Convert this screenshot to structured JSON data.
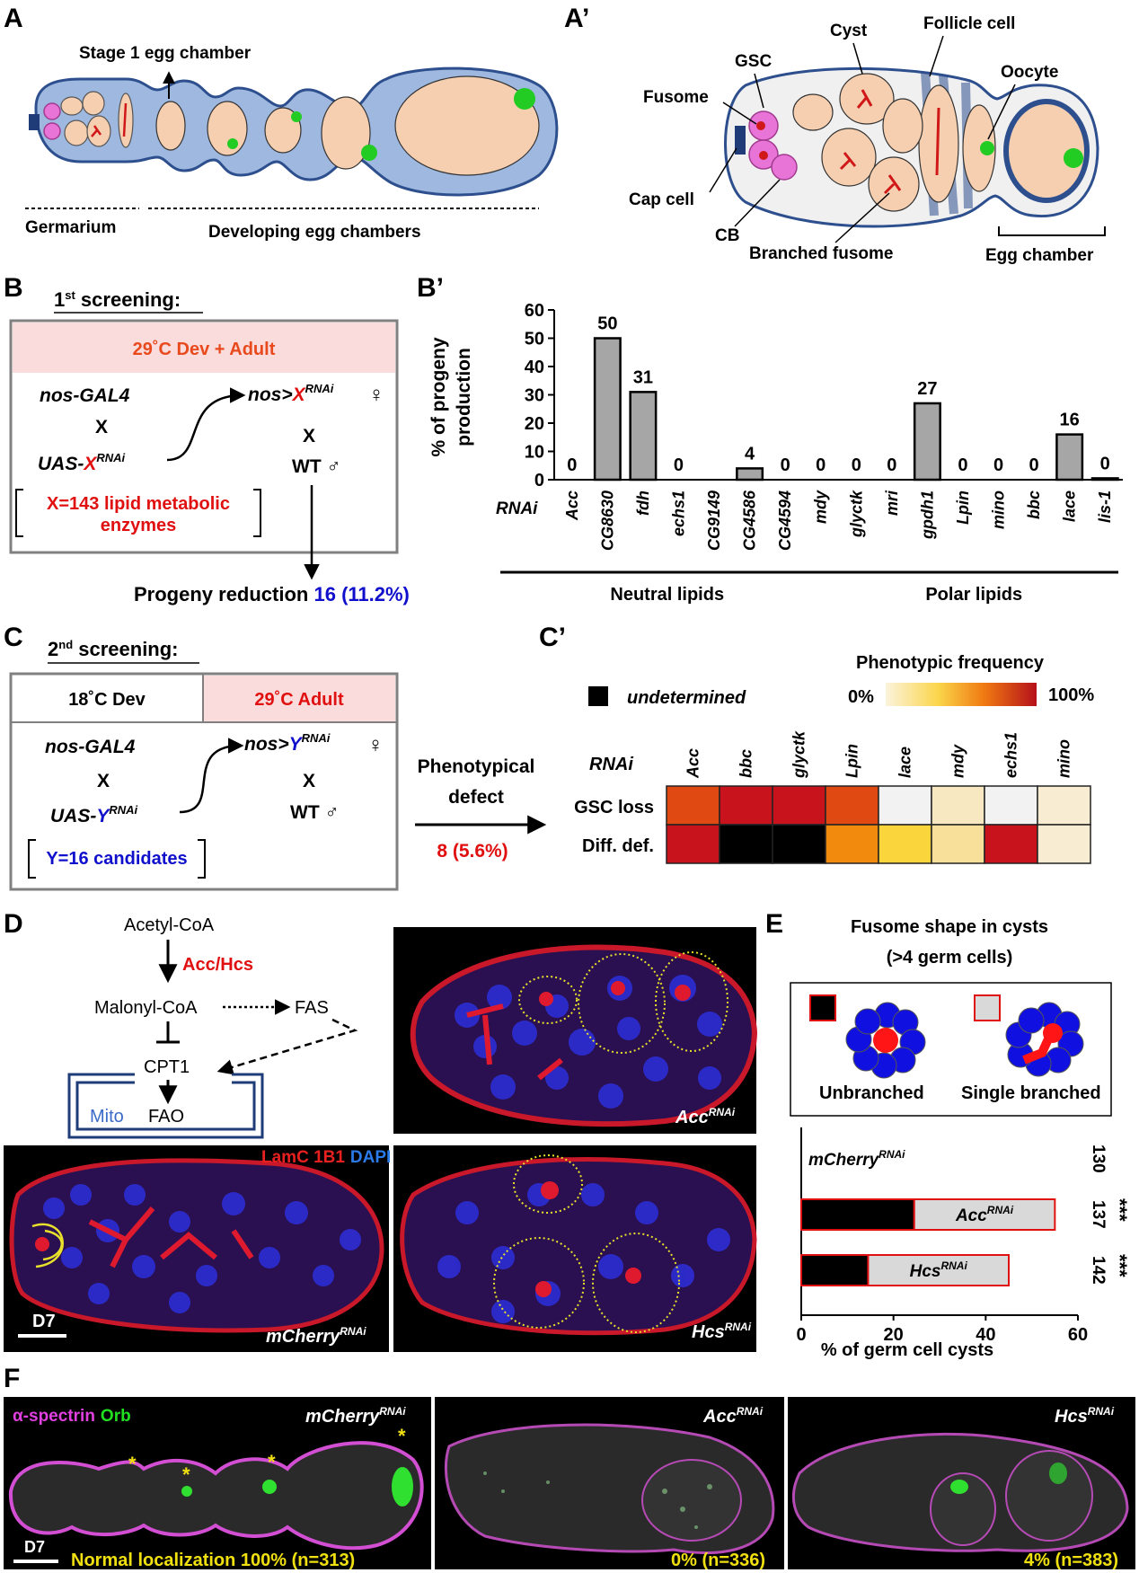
{
  "panels": {
    "A": "A",
    "Ap": "A’",
    "B": "B",
    "Bp": "B’",
    "C": "C",
    "Cp": "C’",
    "D": "D",
    "E": "E",
    "F": "F"
  },
  "panelA": {
    "stage1": "Stage 1 egg chamber",
    "germarium": "Germarium",
    "developing": "Developing egg chambers"
  },
  "panelAp": {
    "cyst": "Cyst",
    "follicle": "Follicle cell",
    "gsc": "GSC",
    "oocyte": "Oocyte",
    "fusome": "Fusome",
    "capcell": "Cap cell",
    "cb": "CB",
    "branched": "Branched fusome",
    "eggchamber": "Egg chamber"
  },
  "panelB": {
    "title_pre": "1",
    "title_sup": "st",
    "title_post": " screening:",
    "condition": "29˚C Dev + Adult",
    "driver": "nos-GAL4",
    "cross1": "X",
    "uas_pre": "UAS-",
    "uas_var": "X",
    "uas_sup": "RNAi",
    "nos_pre": "nos>",
    "nos_var": "X",
    "nos_sup": "RNAi",
    "female": "♀",
    "cross2": "X",
    "wt": "WT",
    "male": "♂",
    "set_line1": "X=143 lipid metabolic",
    "set_line2": "enzymes",
    "result_text": "Progeny reduction ",
    "result_value": "16 (11.2%)"
  },
  "chart_data": {
    "type": "bar",
    "ylabel": "% of progeny production",
    "ylim": [
      0,
      60
    ],
    "yticks": [
      0,
      10,
      20,
      30,
      40,
      50,
      60
    ],
    "row_label": "RNAi",
    "categories": [
      "Acc",
      "CG8630",
      "fdh",
      "echs1",
      "CG9149",
      "CG4586",
      "CG4594",
      "mdy",
      "glyctk",
      "mri",
      "gpdh1",
      "Lpin",
      "mino",
      "bbc",
      "lace",
      "lis-1"
    ],
    "values": [
      0,
      50,
      31,
      0,
      0,
      4,
      0,
      0,
      0,
      0,
      27,
      0,
      0,
      0,
      16,
      0.5
    ],
    "data_labels": [
      "0",
      "50",
      "31",
      "0",
      "",
      "4",
      "0",
      "0",
      "0",
      "0",
      "27",
      "0",
      "0",
      "0",
      "16",
      "0"
    ],
    "groups": [
      {
        "name": "Neutral lipids",
        "from": 0,
        "to": 7
      },
      {
        "name": "Polar lipids",
        "from": 8,
        "to": 15
      }
    ],
    "bar_color": "#a6a6a6",
    "grid": false
  },
  "panelC": {
    "title_pre": "2",
    "title_sup": "nd",
    "title_post": " screening:",
    "dev": "18˚C Dev",
    "adult": "29˚C Adult",
    "driver": "nos-GAL4",
    "cross1": "X",
    "uas_pre": "UAS-",
    "uas_var": "Y",
    "uas_sup": "RNAi",
    "nos_pre": "nos>",
    "nos_var": "Y",
    "nos_sup": "RNAi",
    "female": "♀",
    "cross2": "X",
    "wt": "WT",
    "male": "♂",
    "set_line": "Y=16 candidates",
    "arrow_line1": "Phenotypical",
    "arrow_line2": "defect",
    "arrow_value": "8 (5.6%)"
  },
  "panelCp": {
    "legend_undetermined": "undetermined",
    "legend_title": "Phenotypic frequency",
    "legend_min": "0%",
    "legend_max": "100%",
    "row_header": "RNAi",
    "columns": [
      "Acc",
      "bbc",
      "glyctk",
      "Lpin",
      "lace",
      "mdy",
      "echs1",
      "mino"
    ],
    "rows": [
      {
        "label": "GSC loss",
        "colors": [
          "#e04a12",
          "#c8121c",
          "#c8121c",
          "#e04a12",
          "#f2f2f2",
          "#f7e8c2",
          "#f2f2f2",
          "#f8ecd2"
        ]
      },
      {
        "label": "Diff. def.",
        "colors": [
          "#c8121c",
          "#000000",
          "#000000",
          "#f28a0e",
          "#fad63c",
          "#f9e09a",
          "#c8121c",
          "#f8ecd2"
        ]
      }
    ]
  },
  "panelD": {
    "acetyl": "Acetyl-CoA",
    "enzyme": "Acc/Hcs",
    "malonyl": "Malonyl-CoA",
    "fas": "FAS",
    "cpt1": "CPT1",
    "mito": "Mito",
    "fao": "FAO",
    "stain_lamc": "LamC 1B1",
    "stain_dapi": "DAPI",
    "day": "D7",
    "img_mcherry": "mCherry",
    "img_acc": "Acc",
    "img_hcs": "Hcs",
    "rnai": "RNAi"
  },
  "panelE": {
    "title_line1": "Fusome shape in cysts",
    "title_line2": "(>4 germ cells)",
    "legend_unbranched": "Unbranched",
    "legend_single": "Single branched",
    "chart": {
      "type": "bar",
      "orientation": "horizontal",
      "xlabel": "% of germ cell cysts",
      "xlim": [
        0,
        60
      ],
      "xticks": [
        0,
        20,
        40,
        60
      ],
      "significance": "***",
      "rows": [
        {
          "name": "mCherry",
          "sup": "RNAi",
          "unbranched": 0,
          "single": 0,
          "n": "130",
          "sig": ""
        },
        {
          "name": "Acc",
          "sup": "RNAi",
          "unbranched": 24.5,
          "single": 30.5,
          "n": "137",
          "sig": "***"
        },
        {
          "name": "Hcs",
          "sup": "RNAi",
          "unbranched": 14.5,
          "single": 30.5,
          "n": "142",
          "sig": "***"
        }
      ]
    }
  },
  "panelF": {
    "stain_spectrin": "α-spectrin",
    "stain_orb": "Orb",
    "img1": "mCherry",
    "img2": "Acc",
    "img3": "Hcs",
    "rnai": "RNAi",
    "day": "D7",
    "res1": "Normal localization 100% (n=313)",
    "res2": "0% (n=336)",
    "res3": "4% (n=383)",
    "asterisk": "*"
  }
}
